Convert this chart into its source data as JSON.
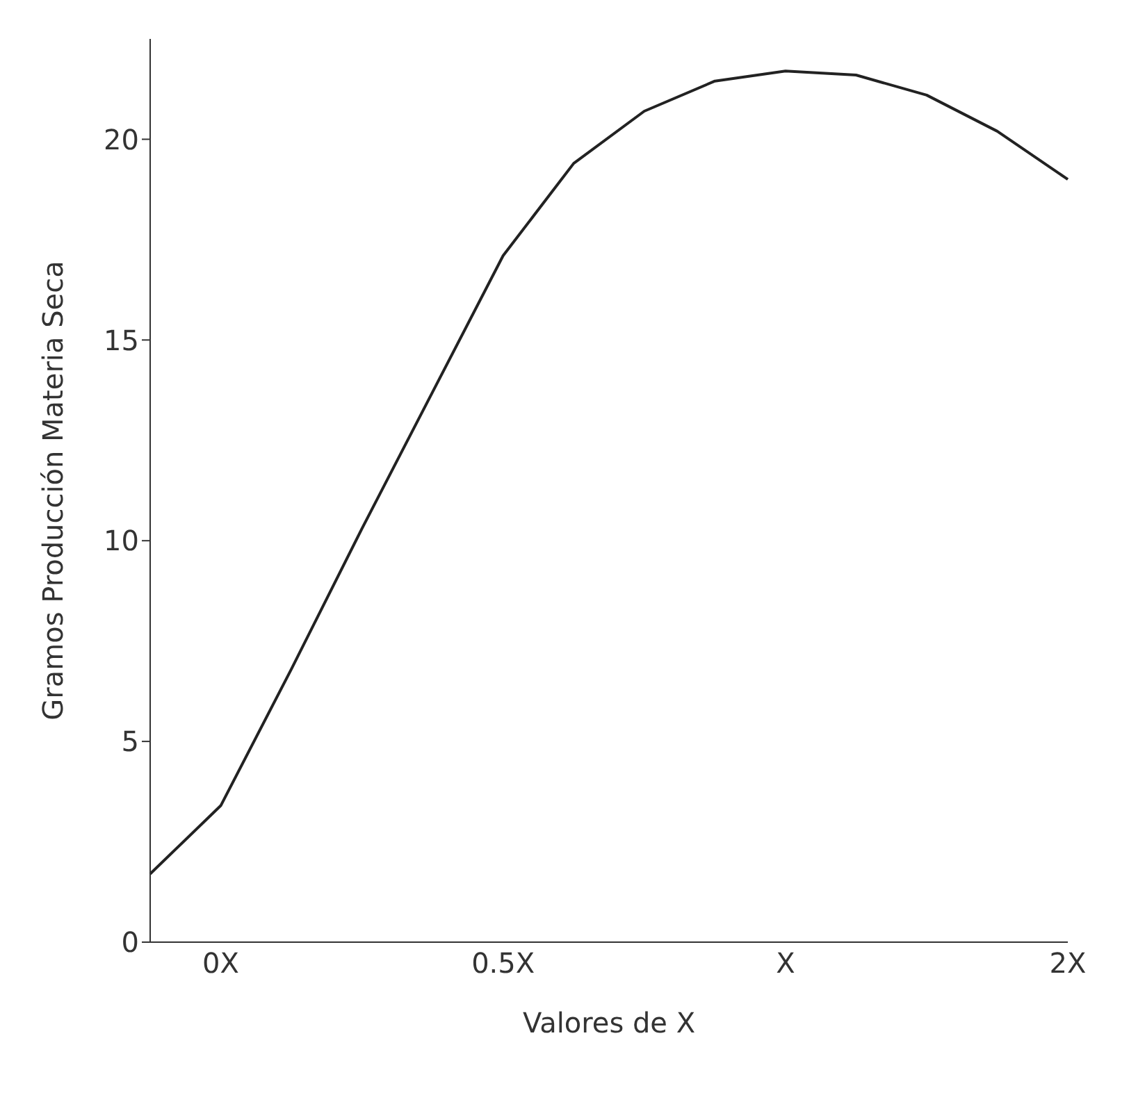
{
  "chart_data": {
    "type": "line",
    "xlabel": "Valores de X",
    "ylabel": "Gramos Producción Materia Seca",
    "categories": [
      null,
      "0X",
      null,
      null,
      null,
      "0.5X",
      null,
      null,
      null,
      "X",
      null,
      null,
      null,
      "2X"
    ],
    "values": [
      1.7,
      3.4,
      6.8,
      10.3,
      13.7,
      17.1,
      19.4,
      20.7,
      21.45,
      21.7,
      21.6,
      21.1,
      20.2,
      19.0
    ],
    "color": "#222222",
    "ylim": [
      0,
      22.5
    ],
    "yticks": [
      0,
      5,
      10,
      15,
      20
    ],
    "grid": false,
    "legend": false,
    "marker": "none",
    "line_style": "solid"
  }
}
